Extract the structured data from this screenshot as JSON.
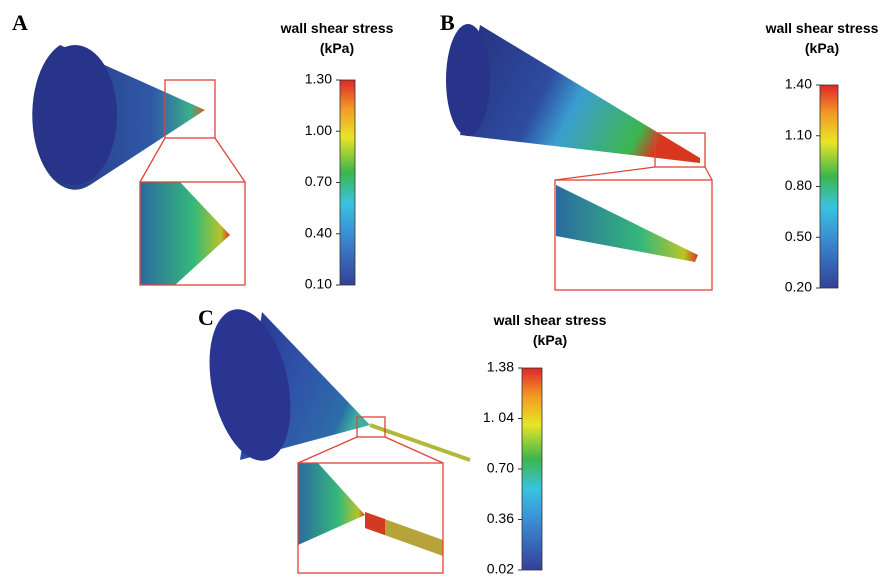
{
  "panels": [
    {
      "label": "A",
      "legend_title": [
        "wall shear stress",
        "(kPa)"
      ],
      "ticks": [
        "1.30",
        "1.00",
        "0.70",
        "0.40",
        "0.10"
      ]
    },
    {
      "label": "B",
      "legend_title": [
        "wall shear stress",
        "(kPa)"
      ],
      "ticks": [
        "1.40",
        "1.10",
        "0.80",
        "0.50",
        "0.20"
      ]
    },
    {
      "label": "C",
      "legend_title": [
        "wall shear stress",
        "(kPa)"
      ],
      "ticks": [
        "1.38",
        "1. 04",
        "0.70",
        "0.36",
        "0.02"
      ]
    }
  ]
}
